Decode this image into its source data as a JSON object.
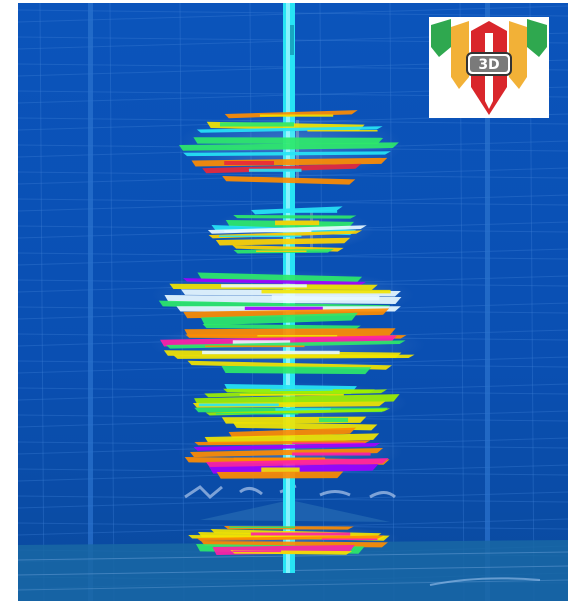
{
  "viewport": {
    "background": "#0a53b8",
    "wellbore_color": "#27e4f5",
    "grid_color": "#3b7fd8",
    "surface_color": "#1b6aa8"
  },
  "logo": {
    "text": "3D",
    "icon": "3d-shield-logo-icon",
    "colors": {
      "green": "#2fa84f",
      "gold": "#f2b137",
      "red": "#d9262b",
      "gray": "#7a7a7a"
    }
  },
  "data_slices": [
    {
      "name": "slice-1",
      "palette": [
        "#f2e400",
        "#2ee86a",
        "#ff8c00",
        "#e8283a",
        "#27e4f5"
      ]
    },
    {
      "name": "slice-2",
      "palette": [
        "#ffd200",
        "#2ee86a",
        "#e8f8ff",
        "#27e4f5"
      ]
    },
    {
      "name": "slice-3",
      "palette": [
        "#a000ff",
        "#ff8c00",
        "#f2e400",
        "#2ee86a",
        "#ff1fa6",
        "#e8f8ff"
      ]
    },
    {
      "name": "slice-4",
      "palette": [
        "#ff8c00",
        "#f2e400",
        "#ff1fa6",
        "#2ee86a",
        "#e8f8ff"
      ]
    },
    {
      "name": "slice-5",
      "palette": [
        "#2ee86a",
        "#9df000",
        "#27e4f5",
        "#f2e400"
      ]
    },
    {
      "name": "slice-6",
      "palette": [
        "#a000ff",
        "#ff8c00",
        "#ff1fa6",
        "#f2e400",
        "#2ee86a"
      ]
    },
    {
      "name": "slice-7",
      "palette": [
        "#ff1fa6",
        "#f2e400",
        "#2ee86a",
        "#ff8c00"
      ]
    }
  ]
}
